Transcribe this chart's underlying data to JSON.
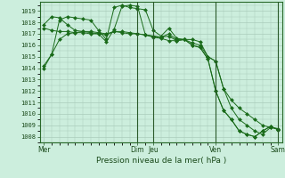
{
  "background_color": "#cceedd",
  "grid_color": "#aaccbb",
  "line_color": "#1a6b1a",
  "marker_color": "#1a6b1a",
  "xlabel": "Pression niveau de la mer( hPa )",
  "ylim": [
    1007.5,
    1019.8
  ],
  "yticks": [
    1008,
    1009,
    1010,
    1011,
    1012,
    1013,
    1014,
    1015,
    1016,
    1017,
    1018,
    1019
  ],
  "xtick_labels": [
    "Mer",
    "Dim",
    "Jeu",
    "Ven",
    "Sam"
  ],
  "xtick_positions": [
    0,
    12,
    14,
    22,
    30
  ],
  "vline_positions": [
    12,
    14,
    22,
    30
  ],
  "series": [
    [
      1014.0,
      1015.2,
      1018.2,
      1018.5,
      1018.4,
      1018.3,
      1018.2,
      1017.3,
      1016.5,
      1019.3,
      1019.5,
      1019.3,
      1019.2,
      1019.1,
      1017.3,
      1016.8,
      1017.5,
      1016.6,
      1016.5,
      1016.5,
      1016.3,
      1015.0,
      1014.6,
      1012.2,
      1011.2,
      1010.5,
      1010.0,
      1009.5,
      1009.0,
      1008.8,
      1008.7
    ],
    [
      1017.8,
      1018.5,
      1018.4,
      1017.8,
      1017.3,
      1017.2,
      1017.2,
      1017.1,
      1017.0,
      1017.2,
      1017.2,
      1017.1,
      1017.0,
      1016.9,
      1016.8,
      1016.7,
      1017.0,
      1016.5,
      1016.5,
      1016.2,
      1016.0,
      1015.0,
      1014.6,
      1012.2,
      1010.5,
      1009.5,
      1009.0,
      1008.5,
      1008.2,
      1008.8,
      1008.7
    ],
    [
      1017.5,
      1017.3,
      1017.2,
      1017.2,
      1017.1,
      1017.1,
      1017.0,
      1017.0,
      1016.9,
      1017.2,
      1017.1,
      1017.0,
      1017.0,
      1016.9,
      1016.8,
      1016.7,
      1016.8,
      1016.4,
      1016.5,
      1016.0,
      1015.8,
      1014.8,
      1012.0,
      1010.3,
      1009.5,
      1008.5,
      1008.2,
      1008.0,
      1008.5,
      1008.9,
      1008.6
    ],
    [
      1014.2,
      1015.2,
      1016.5,
      1017.0,
      1017.1,
      1017.2,
      1017.1,
      1017.0,
      1016.3,
      1017.4,
      1019.4,
      1019.5,
      1019.4,
      1016.9,
      1016.7,
      1016.6,
      1016.4,
      1016.4,
      1016.5,
      1016.0,
      1015.8,
      1014.8,
      1012.0,
      1010.3,
      1009.5,
      1008.5,
      1008.2,
      1008.0,
      1008.5,
      1008.9,
      1008.6
    ]
  ],
  "n_points": 31
}
